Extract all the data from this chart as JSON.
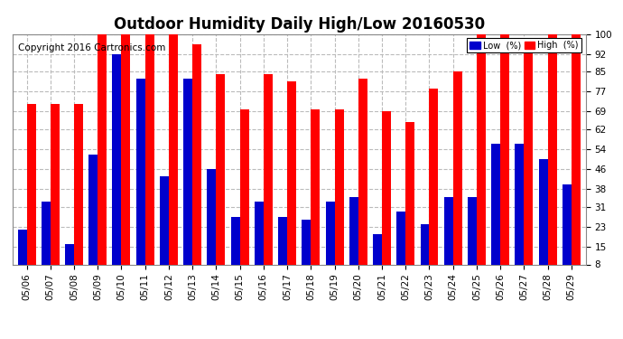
{
  "title": "Outdoor Humidity Daily High/Low 20160530",
  "copyright": "Copyright 2016 Cartronics.com",
  "dates": [
    "05/06",
    "05/07",
    "05/08",
    "05/09",
    "05/10",
    "05/11",
    "05/12",
    "05/13",
    "05/14",
    "05/15",
    "05/16",
    "05/17",
    "05/18",
    "05/19",
    "05/20",
    "05/21",
    "05/22",
    "05/23",
    "05/24",
    "05/25",
    "05/26",
    "05/27",
    "05/28",
    "05/29"
  ],
  "high": [
    72,
    72,
    72,
    100,
    100,
    100,
    100,
    96,
    84,
    70,
    84,
    81,
    70,
    70,
    82,
    69,
    65,
    78,
    85,
    100,
    100,
    96,
    100,
    100
  ],
  "low": [
    22,
    33,
    16,
    52,
    92,
    82,
    43,
    82,
    46,
    27,
    33,
    27,
    26,
    33,
    35,
    20,
    29,
    24,
    35,
    35,
    56,
    56,
    50,
    40
  ],
  "high_color": "#ff0000",
  "low_color": "#0000cc",
  "bg_color": "#ffffff",
  "grid_color": "#bbbbbb",
  "ylim": [
    8,
    100
  ],
  "yticks": [
    8,
    15,
    23,
    31,
    38,
    46,
    54,
    62,
    69,
    77,
    85,
    92,
    100
  ],
  "bar_width": 0.38,
  "legend_low_label": "Low  (%)",
  "legend_high_label": "High  (%)",
  "title_fontsize": 12,
  "tick_fontsize": 7.5,
  "copyright_fontsize": 7.5
}
